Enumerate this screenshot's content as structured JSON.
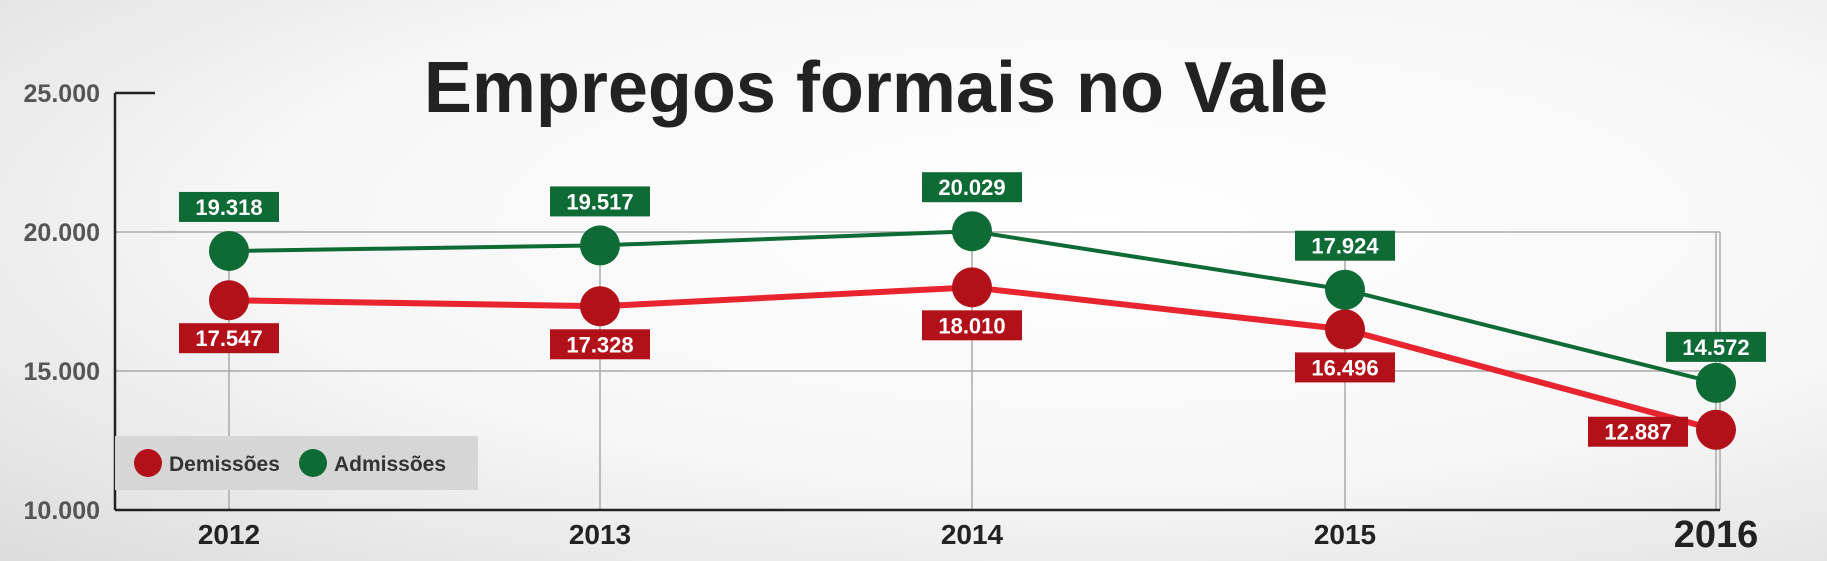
{
  "chart_data": {
    "type": "line",
    "title": "Empregos formais no Vale",
    "categories": [
      "2012",
      "2013",
      "2014",
      "2015",
      "2016"
    ],
    "y_ticks": [
      "10.000",
      "15.000",
      "20.000",
      "25.000"
    ],
    "ylim": [
      10000,
      25000
    ],
    "grid": true,
    "legend_position": "bottom-left",
    "series": [
      {
        "name": "Admissões",
        "color": "#0f6b36",
        "values": [
          19318,
          19517,
          20029,
          17924,
          14572
        ],
        "labels": [
          "19.318",
          "19.517",
          "20.029",
          "17.924",
          "14.572"
        ]
      },
      {
        "name": "Demissões",
        "color": "#b3111a",
        "line_color": "#e8252e",
        "values": [
          17547,
          17328,
          18010,
          16496,
          12887
        ],
        "labels": [
          "17.547",
          "17.328",
          "18.010",
          "16.496",
          "12.887"
        ]
      }
    ]
  }
}
